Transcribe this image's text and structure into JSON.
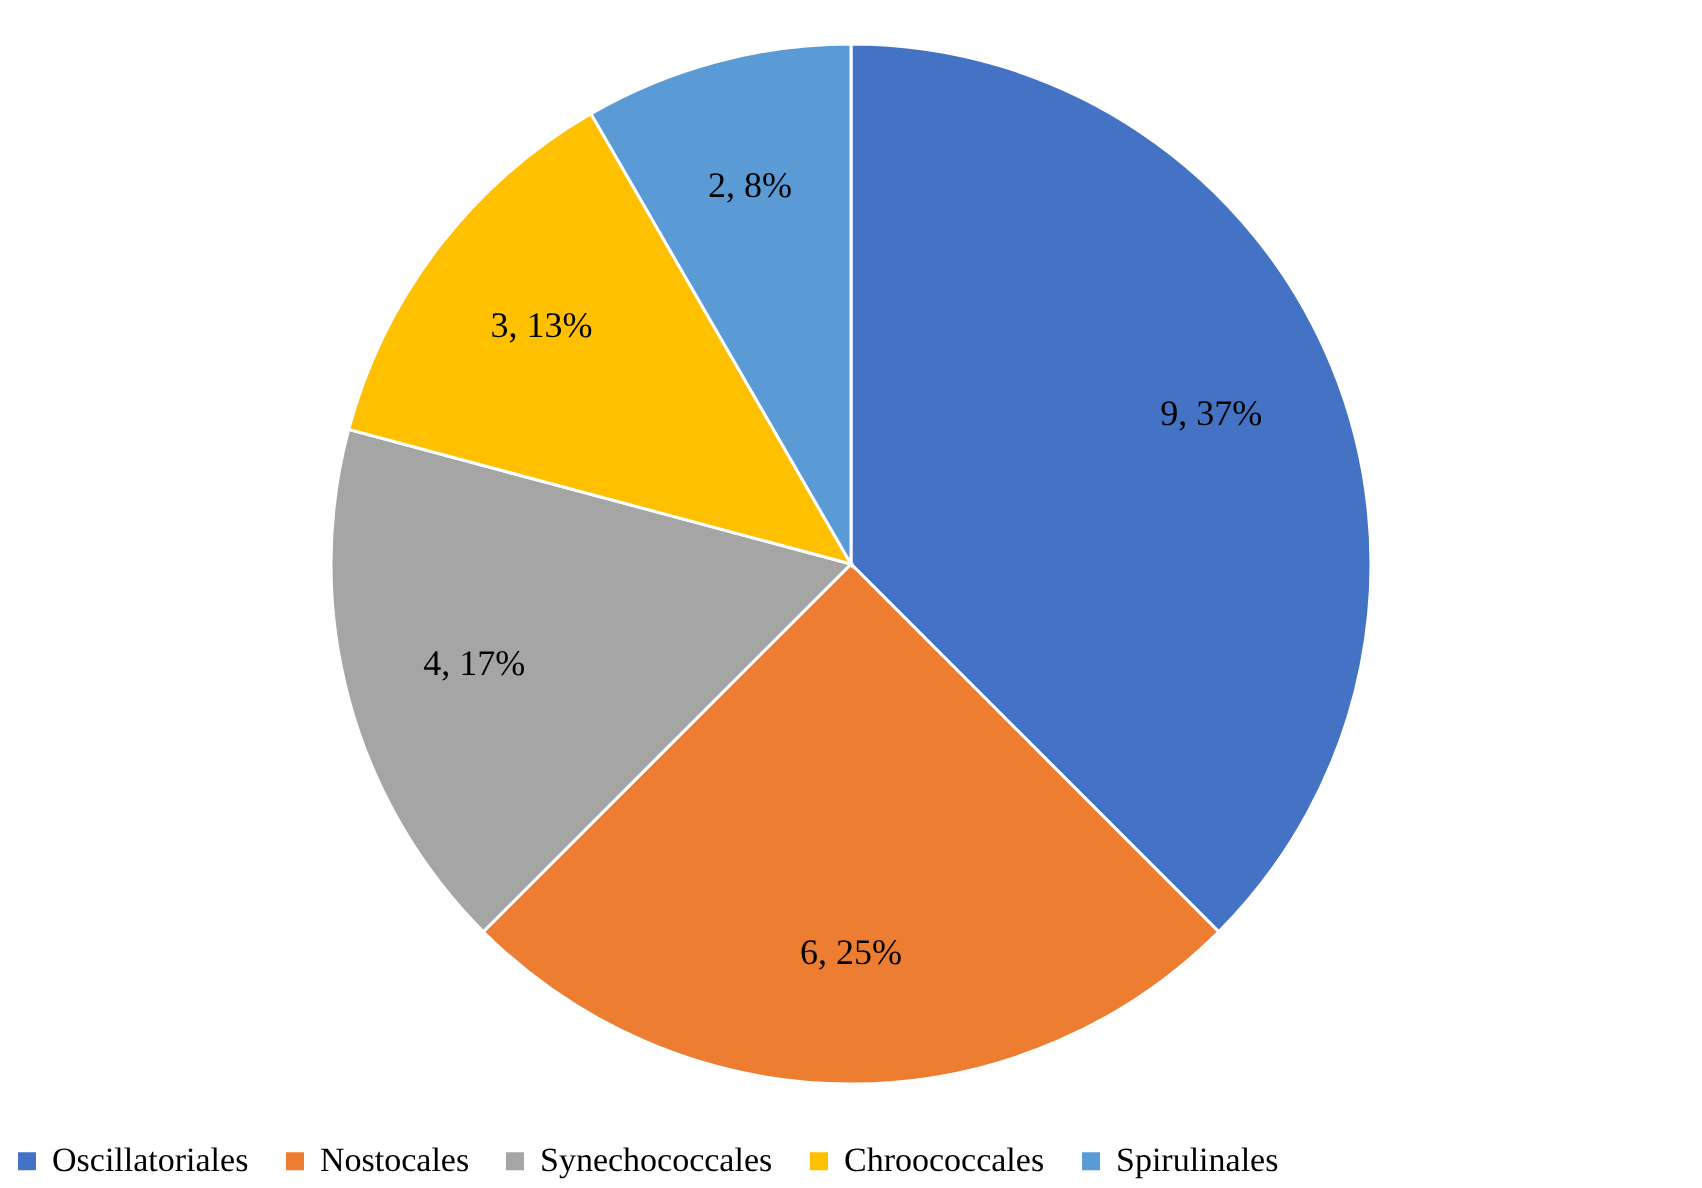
{
  "chart_data": {
    "type": "pie",
    "categories": [
      "Oscillatoriales",
      "Nostocales",
      "Synechococcales",
      "Chroococcales",
      "Spirulinales"
    ],
    "values": [
      9,
      6,
      4,
      3,
      2
    ],
    "colors": [
      "#4472c4",
      "#ed7d31",
      "#a5a5a5",
      "#ffc000",
      "#5b9bd5"
    ],
    "value_labels": [
      "9, 37%",
      "6, 25%",
      "4, 17%",
      "3, 13%",
      "2, 8%"
    ],
    "legend": "bottom"
  }
}
